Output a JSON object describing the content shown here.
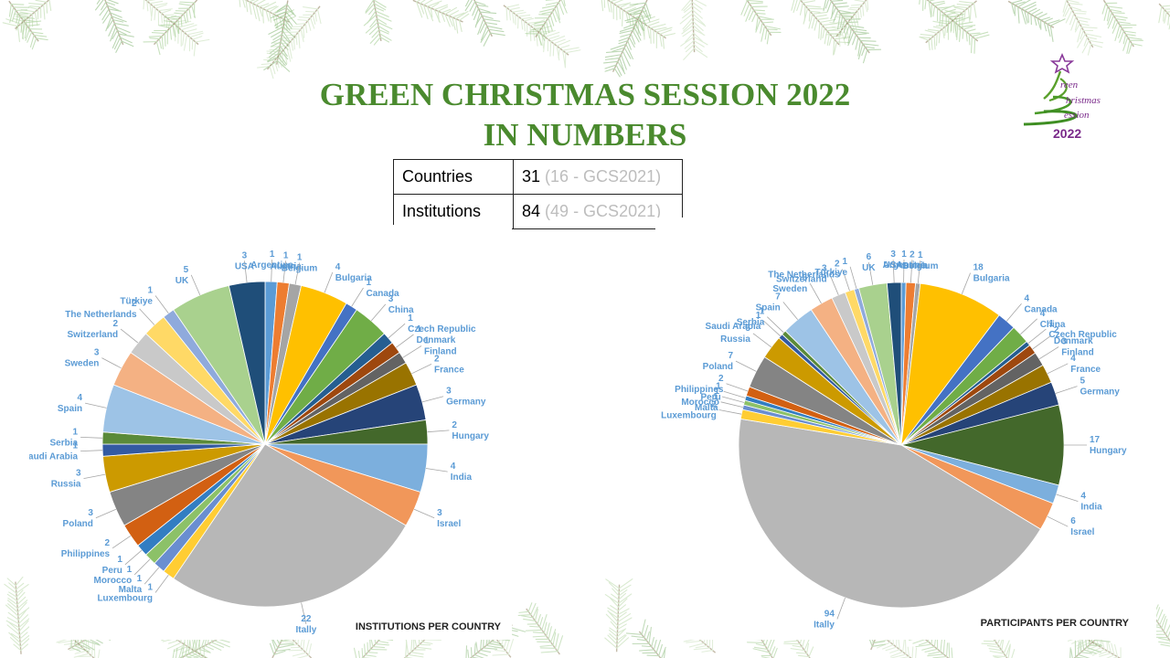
{
  "header": {
    "title_line1": "GREEN CHRISTMAS SESSION 2022",
    "title_line2": "IN NUMBERS"
  },
  "stats": [
    {
      "label": "Countries",
      "value": "31",
      "previous": "(16 - GCS2021)"
    },
    {
      "label": "Institutions",
      "value": "84",
      "previous": "(49 - GCS2021)"
    }
  ],
  "logo": {
    "year": "2022",
    "word1": "reen",
    "word2": "hristmas",
    "word3": "ession"
  },
  "chart_data": [
    {
      "type": "pie",
      "title": "INSTITUTIONS PER COUNTRY",
      "categories": [
        "Argentina",
        "Austria",
        "Belgium",
        "Bulgaria",
        "Canada",
        "China",
        "Czech Republic",
        "Denmark",
        "Finland",
        "France",
        "Germany",
        "Hungary",
        "India",
        "Israel",
        "Itally",
        "Luxembourg",
        "Malta",
        "Morocco",
        "Peru",
        "Philippines",
        "Poland",
        "Russia",
        "Saudi Arabia",
        "Serbia",
        "Spain",
        "Sweden",
        "Switzerland",
        "The Netherlands",
        "Türkiye",
        "UK",
        "USA"
      ],
      "values": [
        1,
        1,
        1,
        4,
        1,
        3,
        1,
        1,
        1,
        2,
        3,
        2,
        4,
        3,
        22,
        1,
        1,
        1,
        1,
        2,
        3,
        3,
        1,
        1,
        4,
        3,
        2,
        2,
        1,
        5,
        3
      ],
      "colors": [
        "#5b9bd5",
        "#ed7d31",
        "#a5a5a5",
        "#ffc000",
        "#4472c4",
        "#70ad47",
        "#255e91",
        "#9e480e",
        "#636363",
        "#997300",
        "#264478",
        "#43682b",
        "#7cafdd",
        "#f1975a",
        "#b7b7b7",
        "#ffcd33",
        "#698ed0",
        "#8cc168",
        "#327dc2",
        "#d26012",
        "#848484",
        "#cc9a00",
        "#335aa1",
        "#5a8a39",
        "#9dc3e6",
        "#f4b183",
        "#c9c9c9",
        "#ffd966",
        "#8faadc",
        "#a9d18e",
        "#1f4e79"
      ],
      "start_category": "Argentina",
      "direction": "clockwise"
    },
    {
      "type": "pie",
      "title": "PARTICIPANTS PER COUNTRY",
      "categories": [
        "Argentina",
        "Austria",
        "Belgium",
        "Bulgaria",
        "Canada",
        "China",
        "Czech Republic",
        "Denmark",
        "Finland",
        "France",
        "Germany",
        "Hungary",
        "India",
        "Israel",
        "Itally",
        "Luxembourg",
        "Malta",
        "Morocco",
        "Peru",
        "Philippines",
        "Poland",
        "Russia",
        "Saudi Arabia",
        "Serbia",
        "Spain",
        "Sweden",
        "Switzerland",
        "The Netherlands",
        "Türkiye",
        "UK",
        "USA"
      ],
      "values": [
        1,
        2,
        1,
        18,
        4,
        4,
        1,
        2,
        3,
        4,
        5,
        17,
        4,
        6,
        94,
        2,
        1,
        1,
        1,
        2,
        7,
        5,
        1,
        1,
        7,
        5,
        3,
        2,
        1,
        6,
        3
      ],
      "colors": [
        "#5b9bd5",
        "#ed7d31",
        "#a5a5a5",
        "#ffc000",
        "#4472c4",
        "#70ad47",
        "#255e91",
        "#9e480e",
        "#636363",
        "#997300",
        "#264478",
        "#43682b",
        "#7cafdd",
        "#f1975a",
        "#b7b7b7",
        "#ffcd33",
        "#698ed0",
        "#8cc168",
        "#327dc2",
        "#d26012",
        "#848484",
        "#cc9a00",
        "#335aa1",
        "#5a8a39",
        "#9dc3e6",
        "#f4b183",
        "#c9c9c9",
        "#ffd966",
        "#8faadc",
        "#a9d18e",
        "#1f4e79"
      ],
      "start_category": "Argentina",
      "direction": "clockwise"
    }
  ]
}
